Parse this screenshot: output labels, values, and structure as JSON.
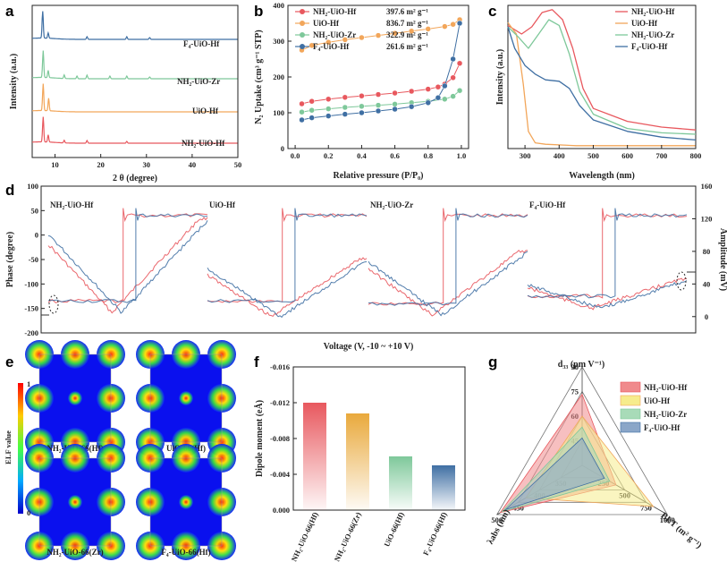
{
  "colors": {
    "nh2hf": "#e8585e",
    "uiohf": "#f2a65a",
    "nh2zr": "#7ec89a",
    "f4hf": "#3f6fa3"
  },
  "panels": {
    "a": "a",
    "b": "b",
    "c": "c",
    "d": "d",
    "e": "e",
    "f": "f",
    "g": "g"
  },
  "chart_data": [
    {
      "id": "a",
      "type": "line",
      "title": "",
      "xlabel": "2 θ (degree)",
      "ylabel": "Intensity (a.u.)",
      "xlim": [
        5,
        50
      ],
      "xticks": [
        "10",
        "20",
        "30",
        "40",
        "50"
      ],
      "series": [
        {
          "name": "F4-UiO-Hf",
          "label": "F₄-UiO-Hf",
          "peaks": [
            7.3,
            8.5,
            17,
            25.7,
            30.7
          ]
        },
        {
          "name": "NH2-UiO-Zr",
          "label": "NH₂-UiO-Zr",
          "peaks": [
            7.4,
            8.5,
            12,
            14.8,
            17,
            22,
            25.7,
            30.7
          ]
        },
        {
          "name": "UiO-Hf",
          "label": "UiO-Hf",
          "peaks": [
            7.4,
            8.6
          ]
        },
        {
          "name": "NH2-UiO-Hf",
          "label": "NH₂-UiO-Hf",
          "peaks": [
            7.4,
            8.5,
            12,
            17,
            25.7
          ]
        }
      ]
    },
    {
      "id": "b",
      "type": "line",
      "xlabel": "Relative pressure (P/P₀)",
      "ylabel": "N₂ Uptake (cm³ g⁻¹ STP)",
      "xlim": [
        0,
        1
      ],
      "ylim": [
        0,
        400
      ],
      "xticks": [
        "0.0",
        "0.2",
        "0.4",
        "0.6",
        "0.8",
        "1.0"
      ],
      "yticks": [
        "0",
        "100",
        "200",
        "300",
        "400"
      ],
      "series": [
        {
          "name": "NH2-UiO-Hf",
          "label": "NH₂-UiO-Hf",
          "bet": "397.6 m² g⁻¹",
          "x": [
            0.04,
            0.1,
            0.2,
            0.3,
            0.4,
            0.5,
            0.6,
            0.7,
            0.8,
            0.86,
            0.9,
            0.95,
            0.99
          ],
          "y": [
            125,
            132,
            138,
            143,
            147,
            151,
            155,
            160,
            166,
            172,
            180,
            198,
            238
          ]
        },
        {
          "name": "UiO-Hf",
          "label": "UiO-Hf",
          "bet": "836.7 m² g⁻¹",
          "x": [
            0.04,
            0.1,
            0.2,
            0.3,
            0.4,
            0.5,
            0.6,
            0.7,
            0.8,
            0.9,
            0.95,
            0.99
          ],
          "y": [
            275,
            288,
            297,
            304,
            310,
            316,
            322,
            328,
            334,
            341,
            347,
            360
          ]
        },
        {
          "name": "NH2-UiO-Zr",
          "label": "NH₂-UiO-Zr",
          "bet": "322.9 m² g⁻¹",
          "x": [
            0.04,
            0.1,
            0.2,
            0.3,
            0.4,
            0.5,
            0.6,
            0.7,
            0.8,
            0.9,
            0.95,
            0.99
          ],
          "y": [
            102,
            107,
            111,
            115,
            118,
            121,
            124,
            128,
            132,
            138,
            146,
            162
          ]
        },
        {
          "name": "F4-UiO-Hf",
          "label": "F₄-UiO-Hf",
          "bet": "261.6 m² g⁻¹",
          "x": [
            0.04,
            0.1,
            0.2,
            0.3,
            0.4,
            0.5,
            0.6,
            0.7,
            0.8,
            0.86,
            0.9,
            0.95,
            0.99
          ],
          "y": [
            80,
            86,
            91,
            96,
            100,
            105,
            110,
            117,
            128,
            142,
            175,
            250,
            350
          ]
        }
      ]
    },
    {
      "id": "c",
      "type": "line",
      "xlabel": "Wavelength (nm)",
      "ylabel": "Intensity (a.u.)",
      "xlim": [
        250,
        800
      ],
      "xticks": [
        "300",
        "400",
        "500",
        "600",
        "700",
        "800"
      ],
      "series": [
        {
          "name": "NH2-UiO-Hf",
          "label": "NH₂-UiO-Hf",
          "x": [
            250,
            290,
            320,
            350,
            380,
            410,
            440,
            470,
            500,
            600,
            700,
            800
          ],
          "y": [
            0.86,
            0.8,
            0.85,
            0.95,
            0.97,
            0.9,
            0.7,
            0.42,
            0.28,
            0.19,
            0.15,
            0.13
          ]
        },
        {
          "name": "UiO-Hf",
          "label": "UiO-Hf",
          "x": [
            250,
            275,
            295,
            310,
            330,
            360,
            450,
            800
          ],
          "y": [
            0.88,
            0.8,
            0.45,
            0.12,
            0.04,
            0.03,
            0.02,
            0.02
          ]
        },
        {
          "name": "NH2-UiO-Zr",
          "label": "NH₂-UiO-Zr",
          "x": [
            250,
            280,
            310,
            340,
            370,
            400,
            430,
            460,
            500,
            600,
            700,
            800
          ],
          "y": [
            0.85,
            0.78,
            0.7,
            0.8,
            0.9,
            0.86,
            0.66,
            0.4,
            0.24,
            0.14,
            0.11,
            0.1
          ]
        },
        {
          "name": "F4-UiO-Hf",
          "label": "F₄-UiO-Hf",
          "x": [
            250,
            270,
            300,
            330,
            360,
            400,
            430,
            460,
            500,
            600,
            700,
            800
          ],
          "y": [
            0.85,
            0.7,
            0.58,
            0.52,
            0.48,
            0.47,
            0.42,
            0.3,
            0.2,
            0.12,
            0.08,
            0.06
          ]
        }
      ]
    },
    {
      "id": "d",
      "type": "line",
      "xlabel": "Voltage (V, -10 ~ +10 V)",
      "ylabel": "Phase (degree)",
      "y2label": "Amplitude (mV)",
      "ylim": [
        -200,
        100
      ],
      "y2lim": [
        -20,
        160
      ],
      "yticks": [
        "100",
        "50",
        "0",
        "-50",
        "-100",
        "-150",
        "-200"
      ],
      "y2ticks": [
        "160",
        "120",
        "80",
        "40",
        "0"
      ],
      "subplots": [
        {
          "name": "NH2-UiO-Hf",
          "label": "NH₂-UiO-Hf",
          "phase_low": -135,
          "phase_high": 40,
          "amp_max": 120,
          "amp_min": 5
        },
        {
          "name": "UiO-Hf",
          "label": "UiO-Hf",
          "phase_low": -135,
          "phase_high": 40,
          "amp_max": 70,
          "amp_min": 0
        },
        {
          "name": "NH2-UiO-Zr",
          "label": "NH₂-UiO-Zr",
          "phase_low": -140,
          "phase_high": 40,
          "amp_max": 80,
          "amp_min": 2
        },
        {
          "name": "F4-UiO-Hf",
          "label": "F₄-UiO-Hf",
          "phase_low": -125,
          "phase_high": 40,
          "amp_max": 45,
          "amp_min": 10
        }
      ]
    },
    {
      "id": "e",
      "type": "heatmap",
      "colorbar_label": "ELF value",
      "colorbar_ticks": [
        "1",
        "0"
      ],
      "maps": [
        {
          "name": "nh2-uio-66-hf",
          "label": "NH₂-UiO-66(Hf)"
        },
        {
          "name": "uio-66-hf",
          "label": "UiO-66(Hf)"
        },
        {
          "name": "nh2-uio-66-zr",
          "label": "NH₂-UiO-66(Zr)"
        },
        {
          "name": "f4-uio-66-hf",
          "label": "F₄-UiO-66(Hf)"
        }
      ]
    },
    {
      "id": "f",
      "type": "bar",
      "ylabel": "Dipole moment (eÅ)",
      "ylim": [
        0,
        -0.016
      ],
      "yticks": [
        "-0.016",
        "-0.012",
        "-0.008",
        "-0.004",
        "0.000"
      ],
      "categories": [
        "NH₂-UiO-66(Hf)",
        "NH₂-UiO-66(Zr)",
        "UiO-66(Hf)",
        "F₄-UiO-66(Hf)"
      ],
      "values": [
        -0.012,
        -0.0108,
        -0.006,
        -0.005
      ],
      "bar_colors": [
        "#e8585e",
        "#e9a93c",
        "#7ec89a",
        "#3f6fa3"
      ]
    },
    {
      "id": "g",
      "type": "radar",
      "axes": [
        {
          "name": "d33",
          "label": "d₃₃ (pm V⁻¹)",
          "min": 0,
          "max": 90,
          "ticks": [
            "45",
            "60",
            "75",
            "90"
          ]
        },
        {
          "name": "BET",
          "label": "BET (m² g⁻¹)",
          "min": 0,
          "max": 1000,
          "ticks": [
            "250",
            "500",
            "750",
            "1000"
          ]
        },
        {
          "name": "lambda_abs",
          "label": "λabs (nm)",
          "min": 0,
          "max": 500,
          "ticks": [
            "350",
            "400",
            "450",
            "500"
          ]
        }
      ],
      "series": [
        {
          "name": "NH2-UiO-Hf",
          "label": "NH₂-UiO-Hf",
          "values": [
            65,
            397.6,
            480
          ]
        },
        {
          "name": "UiO-Hf",
          "label": "UiO-Hf",
          "values": [
            45,
            836.7,
            330
          ]
        },
        {
          "name": "NH2-UiO-Zr",
          "label": "NH₂-UiO-Zr",
          "values": [
            35,
            322.9,
            470
          ]
        },
        {
          "name": "F4-UiO-Hf",
          "label": "F₄-UiO-Hf",
          "values": [
            25,
            261.6,
            450
          ]
        }
      ]
    }
  ]
}
